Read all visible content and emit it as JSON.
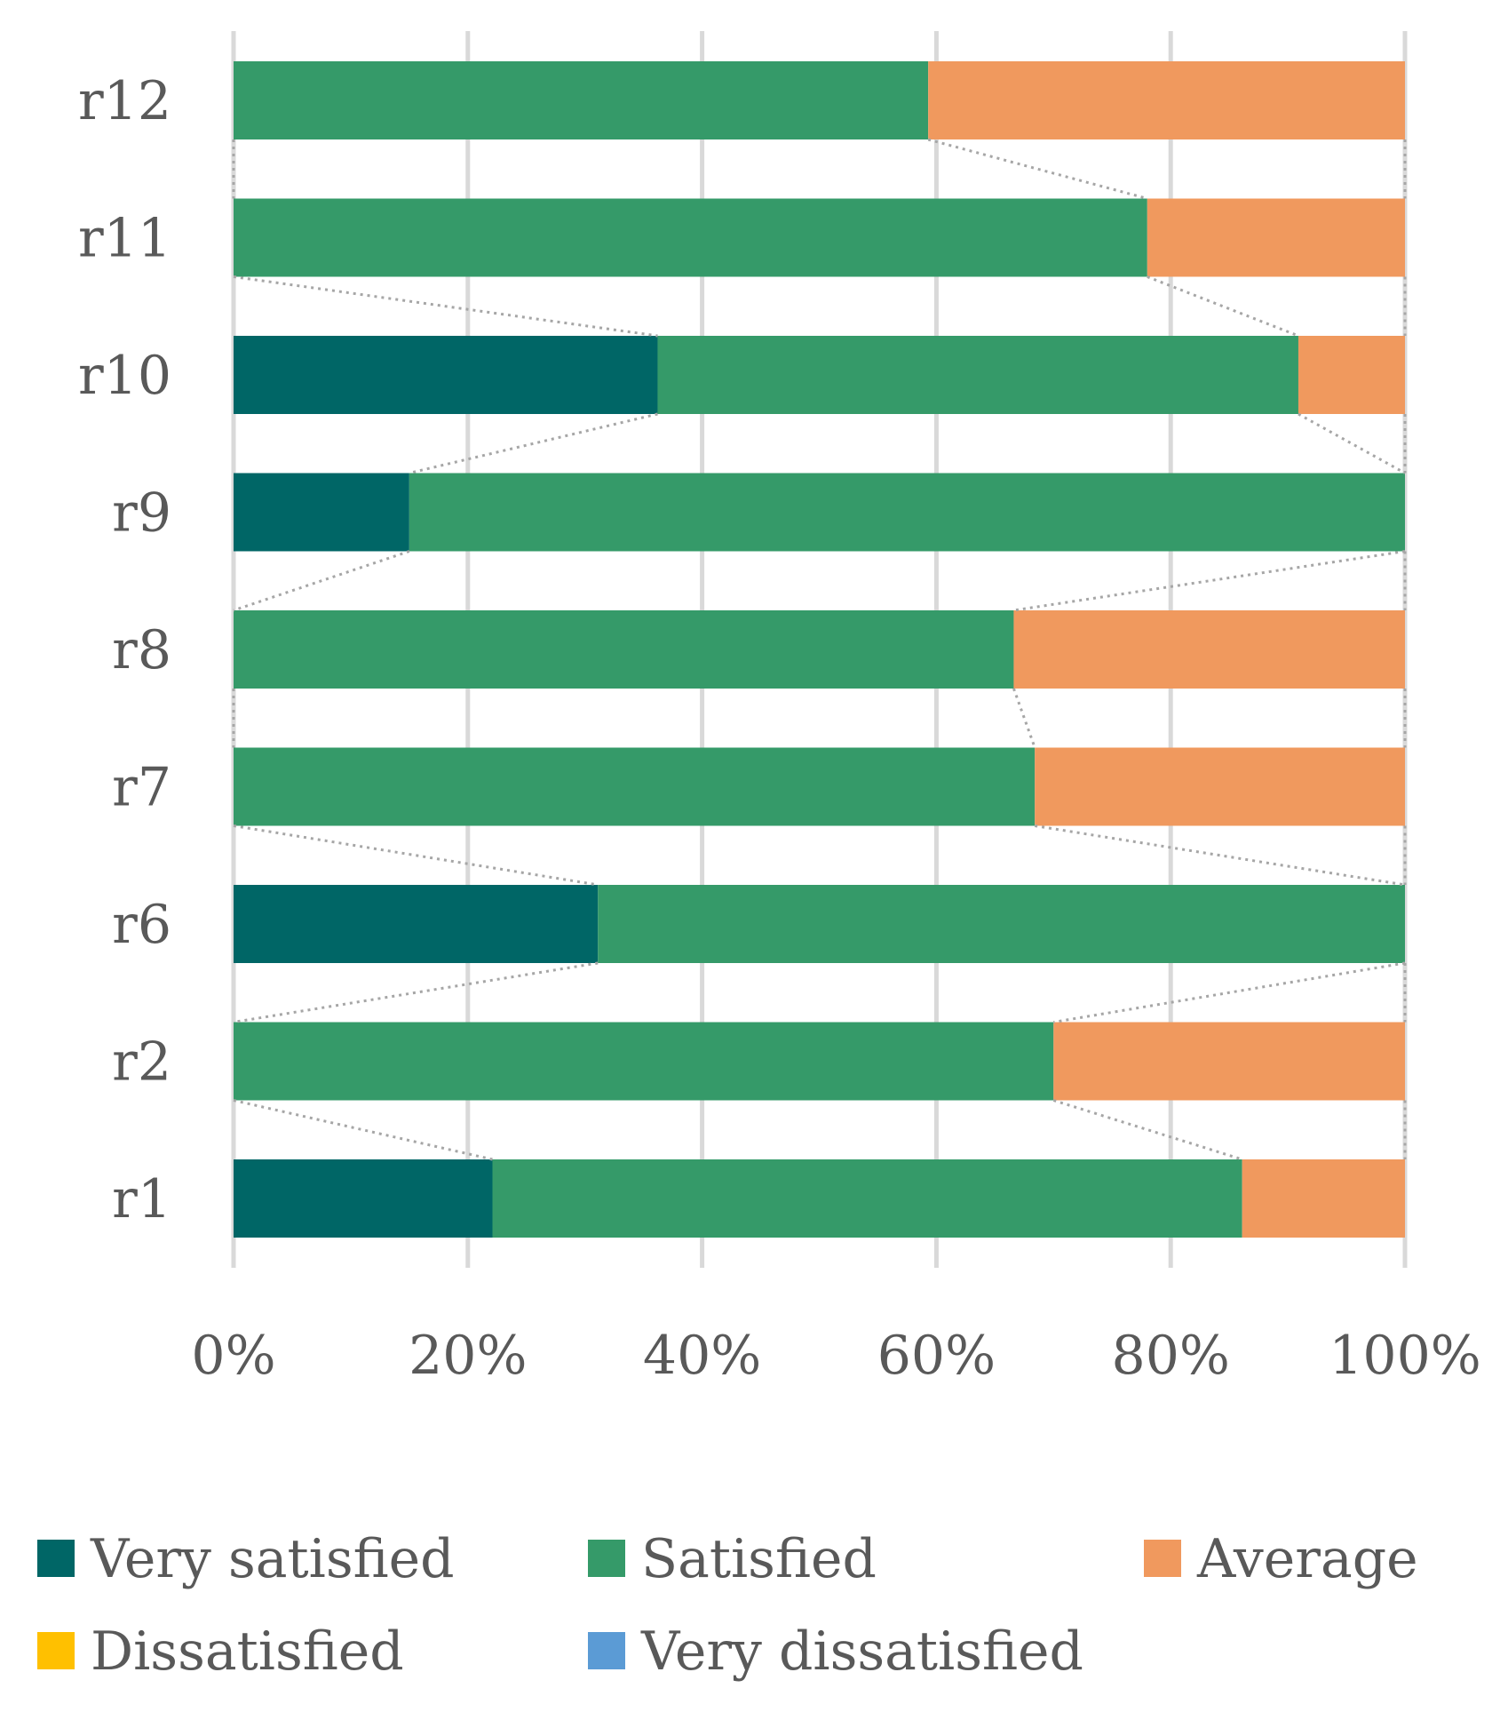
{
  "chart_data": {
    "type": "bar",
    "orientation": "horizontal",
    "stacked": "percent",
    "categories": [
      "r12",
      "r11",
      "r10",
      "r9",
      "r8",
      "r7",
      "r6",
      "r2",
      "r1"
    ],
    "series": [
      {
        "name": "Very satisfied",
        "color": "#006666",
        "values": [
          0,
          0,
          36.2,
          15,
          0,
          0,
          31.1,
          0,
          22.1
        ]
      },
      {
        "name": "Satisfied",
        "color": "#359A69",
        "values": [
          59.3,
          78,
          54.7,
          85,
          66.6,
          68.4,
          68.9,
          70,
          64
        ]
      },
      {
        "name": "Average",
        "color": "#F0995E",
        "values": [
          40.7,
          22,
          9.1,
          0,
          33.4,
          31.6,
          0,
          30,
          13.9
        ]
      },
      {
        "name": "Dissatisfied",
        "color": "#FFC000",
        "values": [
          0,
          0,
          0,
          0,
          0,
          0,
          0,
          0,
          0
        ]
      },
      {
        "name": "Very dissatisfied",
        "color": "#5B9BD5",
        "values": [
          0,
          0,
          0,
          0,
          0,
          0,
          0,
          0,
          0
        ]
      }
    ],
    "x_ticks": [
      "0%",
      "20%",
      "40%",
      "60%",
      "80%",
      "100%"
    ],
    "xlim": [
      0,
      100
    ],
    "grid": "vertical",
    "series_lines": "dotted grey",
    "legend_position": "bottom",
    "title": "",
    "xlabel": "",
    "ylabel": ""
  }
}
